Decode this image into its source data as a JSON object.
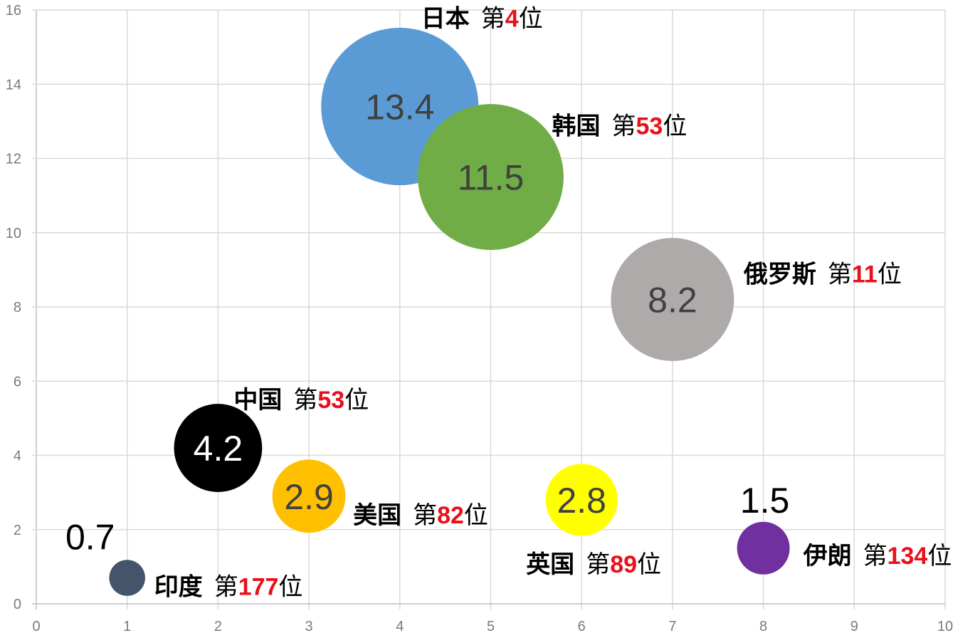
{
  "chart_data": {
    "type": "bubble",
    "xlim": [
      0,
      10
    ],
    "ylim": [
      0,
      16
    ],
    "x_ticks": [
      "0",
      "1",
      "2",
      "3",
      "4",
      "5",
      "6",
      "7",
      "8",
      "9",
      "10"
    ],
    "y_ticks": [
      "0",
      "2",
      "4",
      "6",
      "8",
      "10",
      "12",
      "14",
      "16"
    ],
    "grid": true,
    "points": [
      {
        "name": "日本",
        "rank_prefix": "第",
        "rank_num": "4",
        "rank_suffix": "位",
        "x": 4,
        "y": 13.4,
        "size": 13.4,
        "label": "13.4",
        "color": "#5b9bd5",
        "label_color": "#404040"
      },
      {
        "name": "韩国",
        "rank_prefix": "第",
        "rank_num": "53",
        "rank_suffix": "位",
        "x": 5,
        "y": 11.5,
        "size": 11.5,
        "label": "11.5",
        "color": "#70ad47",
        "label_color": "#404040"
      },
      {
        "name": "俄罗斯",
        "rank_prefix": "第",
        "rank_num": "11",
        "rank_suffix": "位",
        "x": 7,
        "y": 8.2,
        "size": 8.2,
        "label": "8.2",
        "color": "#aeaaaa",
        "label_color": "#404040"
      },
      {
        "name": "中国",
        "rank_prefix": "第",
        "rank_num": "53",
        "rank_suffix": "位",
        "x": 2,
        "y": 4.2,
        "size": 4.2,
        "label": "4.2",
        "color": "#000000",
        "label_color": "#ffffff"
      },
      {
        "name": "美国",
        "rank_prefix": "第",
        "rank_num": "82",
        "rank_suffix": "位",
        "x": 3,
        "y": 2.9,
        "size": 2.9,
        "label": "2.9",
        "color": "#ffc000",
        "label_color": "#404040"
      },
      {
        "name": "英国",
        "rank_prefix": "第",
        "rank_num": "89",
        "rank_suffix": "位",
        "x": 6,
        "y": 2.8,
        "size": 2.8,
        "label": "2.8",
        "color": "#ffff00",
        "label_color": "#404040"
      },
      {
        "name": "伊朗",
        "rank_prefix": "第",
        "rank_num": "134",
        "rank_suffix": "位",
        "x": 8,
        "y": 1.5,
        "size": 1.5,
        "label": "1.5",
        "color": "#7030a0",
        "label_color": "#000000"
      },
      {
        "name": "印度",
        "rank_prefix": "第",
        "rank_num": "177",
        "rank_suffix": "位",
        "x": 1,
        "y": 0.7,
        "size": 0.7,
        "label": "0.7",
        "color": "#44546a",
        "label_color": "#000000"
      }
    ]
  }
}
